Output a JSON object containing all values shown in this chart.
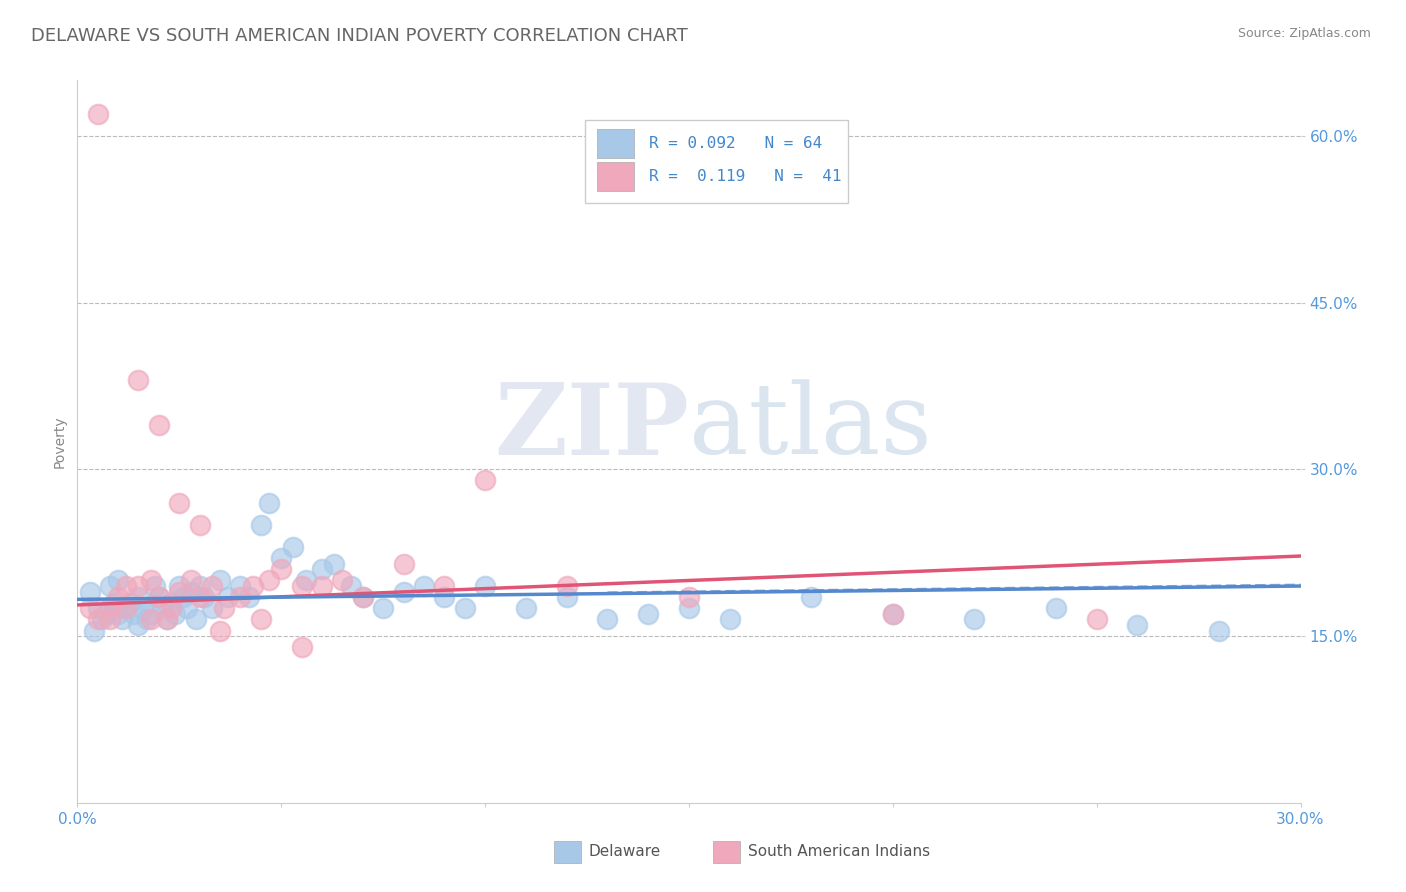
{
  "title": "DELAWARE VS SOUTH AMERICAN INDIAN POVERTY CORRELATION CHART",
  "source": "Source: ZipAtlas.com",
  "ylabel": "Poverty",
  "xlim": [
    0.0,
    0.3
  ],
  "ylim": [
    0.0,
    0.65
  ],
  "xticks": [
    0.0,
    0.05,
    0.1,
    0.15,
    0.2,
    0.25,
    0.3
  ],
  "yticks": [
    0.15,
    0.3,
    0.45,
    0.6
  ],
  "yticklabels": [
    "15.0%",
    "30.0%",
    "45.0%",
    "60.0%"
  ],
  "watermark_zip": "ZIP",
  "watermark_atlas": "atlas",
  "color_delaware": "#a8c8e8",
  "color_sam_indian": "#f0a8bc",
  "line_color_delaware": "#5588cc",
  "line_color_sam": "#e05575",
  "title_fontsize": 13,
  "label_fontsize": 10,
  "tick_fontsize": 11,
  "tick_color": "#5599dd",
  "del_r": 0.092,
  "del_n": 64,
  "sam_r": 0.119,
  "sam_n": 41,
  "del_line_start_y": 0.183,
  "del_line_end_y": 0.195,
  "sam_line_start_y": 0.178,
  "sam_line_end_y": 0.222,
  "delaware_x": [
    0.003,
    0.004,
    0.005,
    0.006,
    0.007,
    0.008,
    0.009,
    0.01,
    0.01,
    0.01,
    0.011,
    0.012,
    0.013,
    0.014,
    0.015,
    0.015,
    0.016,
    0.017,
    0.018,
    0.019,
    0.02,
    0.021,
    0.022,
    0.023,
    0.024,
    0.025,
    0.026,
    0.027,
    0.028,
    0.029,
    0.03,
    0.031,
    0.033,
    0.035,
    0.037,
    0.04,
    0.042,
    0.045,
    0.047,
    0.05,
    0.053,
    0.056,
    0.06,
    0.063,
    0.067,
    0.07,
    0.075,
    0.08,
    0.085,
    0.09,
    0.095,
    0.1,
    0.11,
    0.12,
    0.13,
    0.14,
    0.15,
    0.16,
    0.18,
    0.2,
    0.22,
    0.24,
    0.26,
    0.28
  ],
  "delaware_y": [
    0.19,
    0.155,
    0.175,
    0.165,
    0.17,
    0.195,
    0.18,
    0.17,
    0.175,
    0.2,
    0.165,
    0.175,
    0.18,
    0.17,
    0.16,
    0.185,
    0.175,
    0.165,
    0.17,
    0.195,
    0.185,
    0.175,
    0.165,
    0.18,
    0.17,
    0.195,
    0.185,
    0.175,
    0.19,
    0.165,
    0.195,
    0.185,
    0.175,
    0.2,
    0.185,
    0.195,
    0.185,
    0.25,
    0.27,
    0.22,
    0.23,
    0.2,
    0.21,
    0.215,
    0.195,
    0.185,
    0.175,
    0.19,
    0.195,
    0.185,
    0.175,
    0.195,
    0.175,
    0.185,
    0.165,
    0.17,
    0.175,
    0.165,
    0.185,
    0.17,
    0.165,
    0.175,
    0.16,
    0.155
  ],
  "sam_x": [
    0.003,
    0.005,
    0.008,
    0.01,
    0.012,
    0.015,
    0.018,
    0.02,
    0.023,
    0.025,
    0.028,
    0.03,
    0.033,
    0.036,
    0.04,
    0.043,
    0.047,
    0.05,
    0.055,
    0.06,
    0.065,
    0.07,
    0.08,
    0.09,
    0.1,
    0.12,
    0.15,
    0.02,
    0.015,
    0.025,
    0.03,
    0.005,
    0.008,
    0.012,
    0.018,
    0.022,
    0.035,
    0.045,
    0.055,
    0.2,
    0.25
  ],
  "sam_y": [
    0.175,
    0.165,
    0.175,
    0.185,
    0.195,
    0.195,
    0.2,
    0.185,
    0.175,
    0.19,
    0.2,
    0.185,
    0.195,
    0.175,
    0.185,
    0.195,
    0.2,
    0.21,
    0.195,
    0.195,
    0.2,
    0.185,
    0.215,
    0.195,
    0.29,
    0.195,
    0.185,
    0.34,
    0.38,
    0.27,
    0.25,
    0.62,
    0.165,
    0.175,
    0.165,
    0.165,
    0.155,
    0.165,
    0.14,
    0.17,
    0.165
  ]
}
